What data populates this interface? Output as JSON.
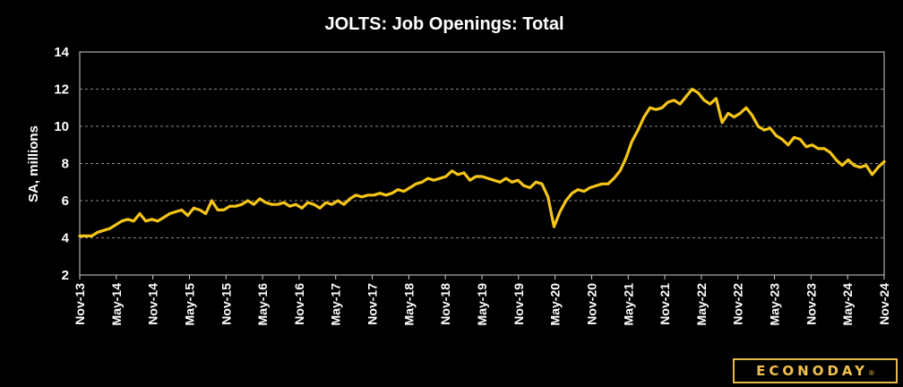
{
  "chart_data": {
    "type": "line",
    "title": "JOLTS: Job Openings: Total",
    "ylabel": "SA, millions",
    "xlabel": "",
    "ylim": [
      2,
      14
    ],
    "yticks": [
      "2",
      "4",
      "6",
      "8",
      "10",
      "12",
      "14"
    ],
    "grid": true,
    "x_ticks": [
      "Nov-13",
      "May-14",
      "Nov-14",
      "May-15",
      "Nov-15",
      "May-16",
      "Nov-16",
      "May-17",
      "Nov-17",
      "May-18",
      "Nov-18",
      "May-19",
      "Nov-19",
      "May-20",
      "Nov-20",
      "May-21",
      "Nov-21",
      "May-22",
      "Nov-22",
      "May-23",
      "Nov-23",
      "May-24",
      "Nov-24"
    ],
    "x_start": "Nov-13",
    "x_end": "Nov-24",
    "line_color": "#f5c518",
    "series": [
      {
        "values": [
          4.1,
          4.1,
          4.1,
          4.3,
          4.4,
          4.5,
          4.7,
          4.9,
          5.0,
          4.9,
          5.3,
          4.9,
          5.0,
          4.9,
          5.1,
          5.3,
          5.4,
          5.5,
          5.2,
          5.6,
          5.5,
          5.3,
          6.0,
          5.5,
          5.5,
          5.7,
          5.7,
          5.8,
          6.0,
          5.8,
          6.1,
          5.9,
          5.8,
          5.8,
          5.9,
          5.7,
          5.8,
          5.6,
          5.9,
          5.8,
          5.6,
          5.9,
          5.8,
          6.0,
          5.8,
          6.1,
          6.3,
          6.2,
          6.3,
          6.3,
          6.4,
          6.3,
          6.4,
          6.6,
          6.5,
          6.7,
          6.9,
          7.0,
          7.2,
          7.1,
          7.2,
          7.3,
          7.6,
          7.4,
          7.5,
          7.1,
          7.3,
          7.3,
          7.2,
          7.1,
          7.0,
          7.2,
          7.0,
          7.1,
          6.8,
          6.7,
          7.0,
          6.9,
          6.2,
          4.6,
          5.4,
          6.0,
          6.4,
          6.6,
          6.5,
          6.7,
          6.8,
          6.9,
          6.9,
          7.2,
          7.6,
          8.3,
          9.2,
          9.8,
          10.5,
          11.0,
          10.9,
          11.0,
          11.3,
          11.4,
          11.2,
          11.6,
          12.0,
          11.8,
          11.4,
          11.2,
          11.5,
          10.2,
          10.7,
          10.5,
          10.7,
          11.0,
          10.6,
          10.0,
          9.8,
          9.9,
          9.5,
          9.3,
          9.0,
          9.4,
          9.3,
          8.9,
          9.0,
          8.8,
          8.8,
          8.6,
          8.2,
          7.9,
          8.2,
          7.9,
          7.8,
          7.9,
          7.4,
          7.8,
          8.1
        ]
      }
    ]
  },
  "branding": {
    "logo_text": "ECONODAY",
    "logo_mark": "®",
    "logo_color": "#f2c14e"
  }
}
